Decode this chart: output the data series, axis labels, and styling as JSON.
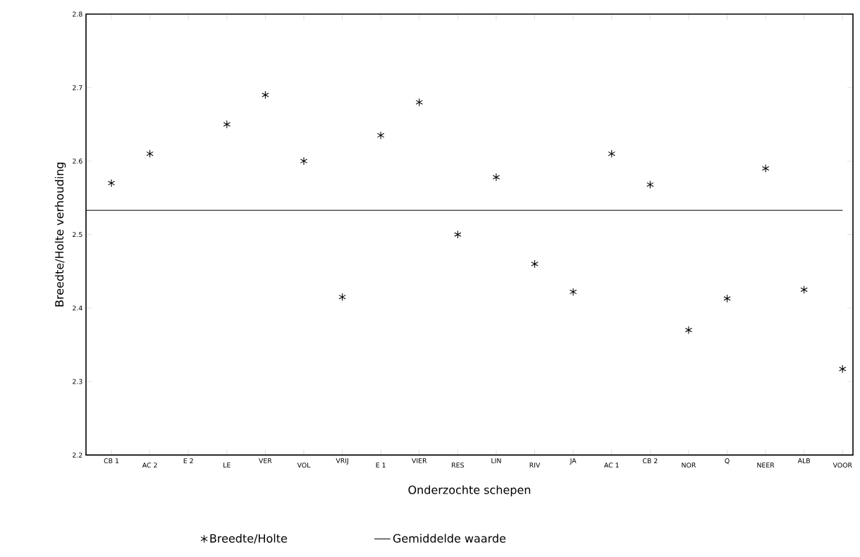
{
  "chart_data": {
    "type": "scatter",
    "xlabel": "Onderzochte schepen",
    "ylabel": "Breedte/Holte verhouding",
    "categories": [
      "CB 1",
      "AC 2",
      "E 2",
      "LE",
      "VER",
      "VOL",
      "VRIJ",
      "E 1",
      "VIER",
      "RES",
      "LIN",
      "RIV",
      "JA",
      "AC 1",
      "CB 2",
      "NOR",
      "Q",
      "NEER",
      "ALB",
      "VOOR"
    ],
    "series": [
      {
        "name": "Breedte/Holte",
        "color": "#000000",
        "values": [
          2.57,
          2.61,
          null,
          2.65,
          2.69,
          2.6,
          2.415,
          2.635,
          2.68,
          2.5,
          2.578,
          2.46,
          2.422,
          2.61,
          2.568,
          2.37,
          2.413,
          2.59,
          2.425,
          2.317
        ]
      }
    ],
    "ref_lines": [
      {
        "axis": "y",
        "value": 2.533,
        "label": "Gemiddelde waarde",
        "color": "#000000",
        "line_style": "solid"
      }
    ],
    "ylim": [
      2.2,
      2.8
    ],
    "yticks": [
      2.2,
      2.3,
      2.4,
      2.5,
      2.6,
      2.7,
      2.8
    ],
    "marker": "cross",
    "legend": "bottom",
    "grid": false
  }
}
